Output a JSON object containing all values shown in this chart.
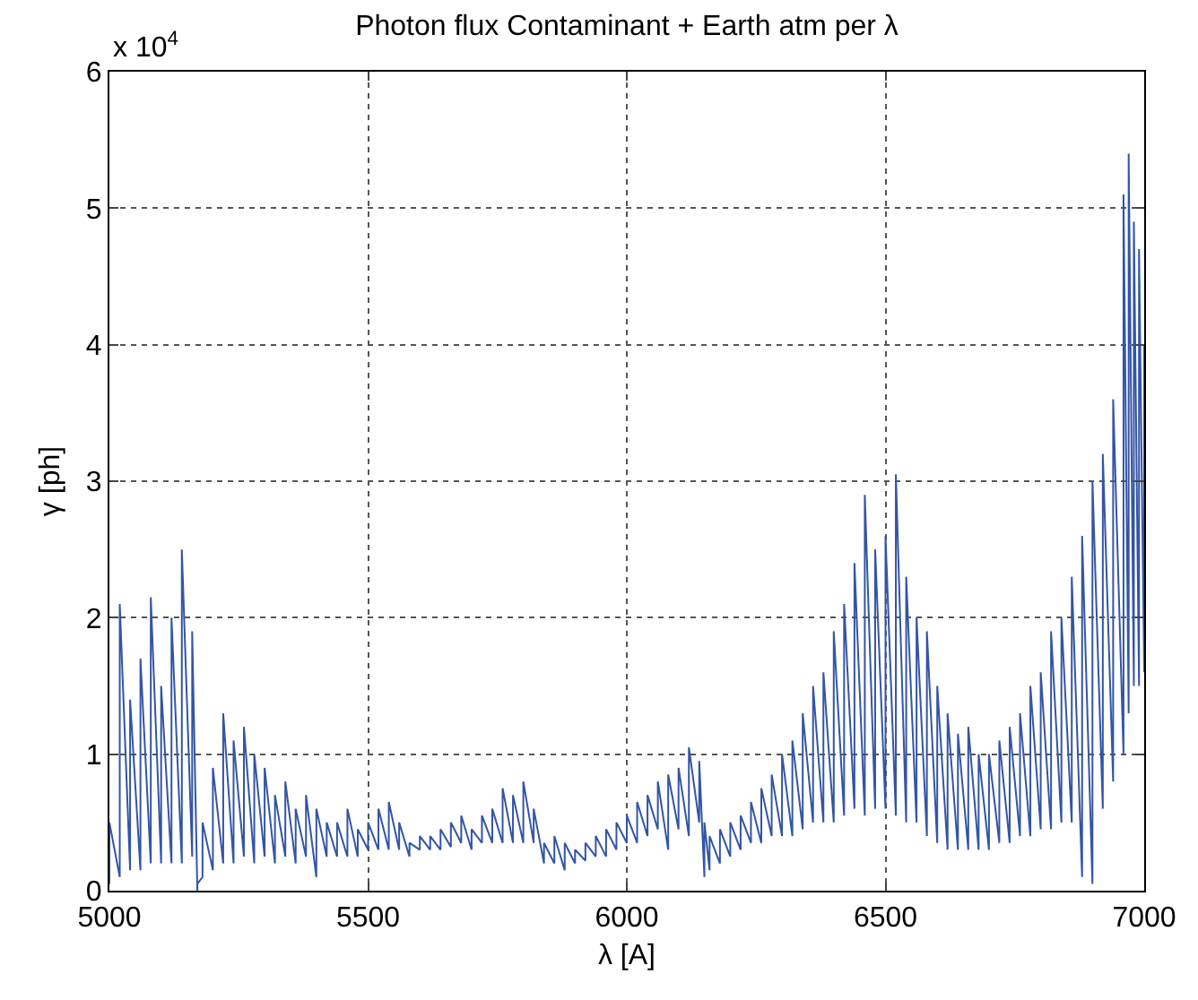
{
  "chart_data": {
    "type": "line",
    "title": "Photon flux Contaminant + Earth atm per λ",
    "xlabel": "λ [A]",
    "ylabel": "γ [ph]",
    "annotations": [
      "x 10$^{4}$"
    ],
    "xlim": [
      5000,
      7000
    ],
    "xticks": [
      5000,
      5500,
      6000,
      6500,
      7000
    ],
    "ylim": [
      0,
      6
    ],
    "yticks": [
      0,
      1,
      2,
      3,
      4,
      5,
      6
    ],
    "grid": true,
    "marker": "none",
    "line_style": "solid",
    "series": [
      {
        "color": "#3355a5",
        "x": [
          5000,
          5000,
          5020,
          5020,
          5040,
          5040,
          5060,
          5060,
          5080,
          5080,
          5100,
          5100,
          5120,
          5120,
          5140,
          5140,
          5160,
          5160,
          5170,
          5170,
          5180,
          5180,
          5200,
          5200,
          5220,
          5220,
          5240,
          5240,
          5260,
          5260,
          5280,
          5280,
          5300,
          5300,
          5320,
          5320,
          5340,
          5340,
          5360,
          5360,
          5380,
          5380,
          5400,
          5400,
          5420,
          5420,
          5440,
          5440,
          5460,
          5460,
          5480,
          5480,
          5500,
          5500,
          5520,
          5520,
          5540,
          5540,
          5560,
          5560,
          5580,
          5580,
          5600,
          5600,
          5620,
          5620,
          5640,
          5640,
          5660,
          5660,
          5680,
          5680,
          5700,
          5700,
          5720,
          5720,
          5740,
          5740,
          5760,
          5760,
          5780,
          5780,
          5800,
          5800,
          5820,
          5820,
          5840,
          5840,
          5860,
          5860,
          5880,
          5880,
          5900,
          5900,
          5920,
          5920,
          5940,
          5940,
          5960,
          5960,
          5980,
          5980,
          6000,
          6000,
          6020,
          6020,
          6040,
          6040,
          6060,
          6060,
          6080,
          6080,
          6100,
          6100,
          6120,
          6120,
          6140,
          6140,
          6150,
          6150,
          6160,
          6160,
          6180,
          6180,
          6200,
          6200,
          6220,
          6220,
          6240,
          6240,
          6260,
          6260,
          6280,
          6280,
          6300,
          6300,
          6320,
          6320,
          6340,
          6340,
          6360,
          6360,
          6380,
          6380,
          6400,
          6400,
          6420,
          6420,
          6440,
          6440,
          6460,
          6460,
          6480,
          6480,
          6500,
          6500,
          6520,
          6520,
          6540,
          6540,
          6560,
          6560,
          6580,
          6580,
          6600,
          6600,
          6620,
          6620,
          6640,
          6640,
          6660,
          6660,
          6680,
          6680,
          6700,
          6700,
          6720,
          6720,
          6740,
          6740,
          6760,
          6760,
          6780,
          6780,
          6800,
          6800,
          6820,
          6820,
          6840,
          6840,
          6860,
          6860,
          6880,
          6880,
          6900,
          6900,
          6920,
          6920,
          6940,
          6940,
          6960,
          6960,
          6970,
          6970,
          6980,
          6980,
          6990,
          6990,
          7000,
          7000
        ],
        "values": [
          0.05,
          0.5,
          0.1,
          2.1,
          0.15,
          1.4,
          0.15,
          1.7,
          0.2,
          2.15,
          0.2,
          1.5,
          0.2,
          2.0,
          0.2,
          2.5,
          0.25,
          1.9,
          0,
          0.05,
          0.1,
          0.5,
          0.15,
          0.9,
          0.2,
          1.3,
          0.2,
          1.1,
          0.25,
          1.2,
          0.2,
          1.0,
          0.25,
          0.9,
          0.2,
          0.7,
          0.25,
          0.8,
          0.2,
          0.6,
          0.25,
          0.7,
          0.1,
          0.6,
          0.25,
          0.5,
          0.25,
          0.5,
          0.25,
          0.6,
          0.25,
          0.45,
          0.3,
          0.5,
          0.3,
          0.6,
          0.3,
          0.65,
          0.3,
          0.5,
          0.25,
          0.35,
          0.3,
          0.4,
          0.3,
          0.4,
          0.3,
          0.45,
          0.32,
          0.5,
          0.35,
          0.55,
          0.3,
          0.45,
          0.35,
          0.55,
          0.35,
          0.6,
          0.35,
          0.75,
          0.35,
          0.7,
          0.35,
          0.8,
          0.35,
          0.6,
          0.2,
          0.35,
          0.2,
          0.4,
          0.15,
          0.35,
          0.2,
          0.3,
          0.22,
          0.35,
          0.25,
          0.4,
          0.25,
          0.45,
          0.3,
          0.5,
          0.35,
          0.55,
          0.35,
          0.65,
          0.4,
          0.7,
          0.45,
          0.8,
          0.3,
          0.85,
          0.45,
          0.9,
          0.4,
          1.05,
          0.5,
          0.95,
          0.1,
          0.5,
          0.15,
          0.4,
          0.2,
          0.45,
          0.25,
          0.5,
          0.3,
          0.55,
          0.35,
          0.65,
          0.35,
          0.75,
          0.4,
          0.85,
          0.4,
          1.0,
          0.4,
          1.1,
          0.45,
          1.3,
          0.5,
          1.5,
          0.5,
          1.6,
          0.5,
          1.9,
          0.55,
          2.1,
          0.6,
          2.4,
          0.55,
          2.9,
          0.6,
          2.5,
          0.6,
          2.6,
          0.55,
          3.05,
          0.5,
          2.3,
          0.5,
          2.0,
          0.4,
          1.9,
          0.35,
          1.5,
          0.3,
          1.3,
          0.3,
          1.15,
          0.3,
          1.2,
          0.3,
          1.0,
          0.3,
          1.0,
          0.35,
          1.1,
          0.35,
          1.2,
          0.4,
          1.3,
          0.4,
          1.5,
          0.45,
          1.6,
          0.45,
          1.9,
          0.5,
          2.0,
          0.5,
          2.3,
          0.1,
          2.6,
          0.05,
          3.0,
          0.6,
          3.2,
          0.8,
          3.6,
          1.0,
          5.1,
          1.3,
          5.4,
          1.5,
          4.9,
          1.5,
          4.7,
          1.6,
          4.0
        ]
      }
    ]
  }
}
